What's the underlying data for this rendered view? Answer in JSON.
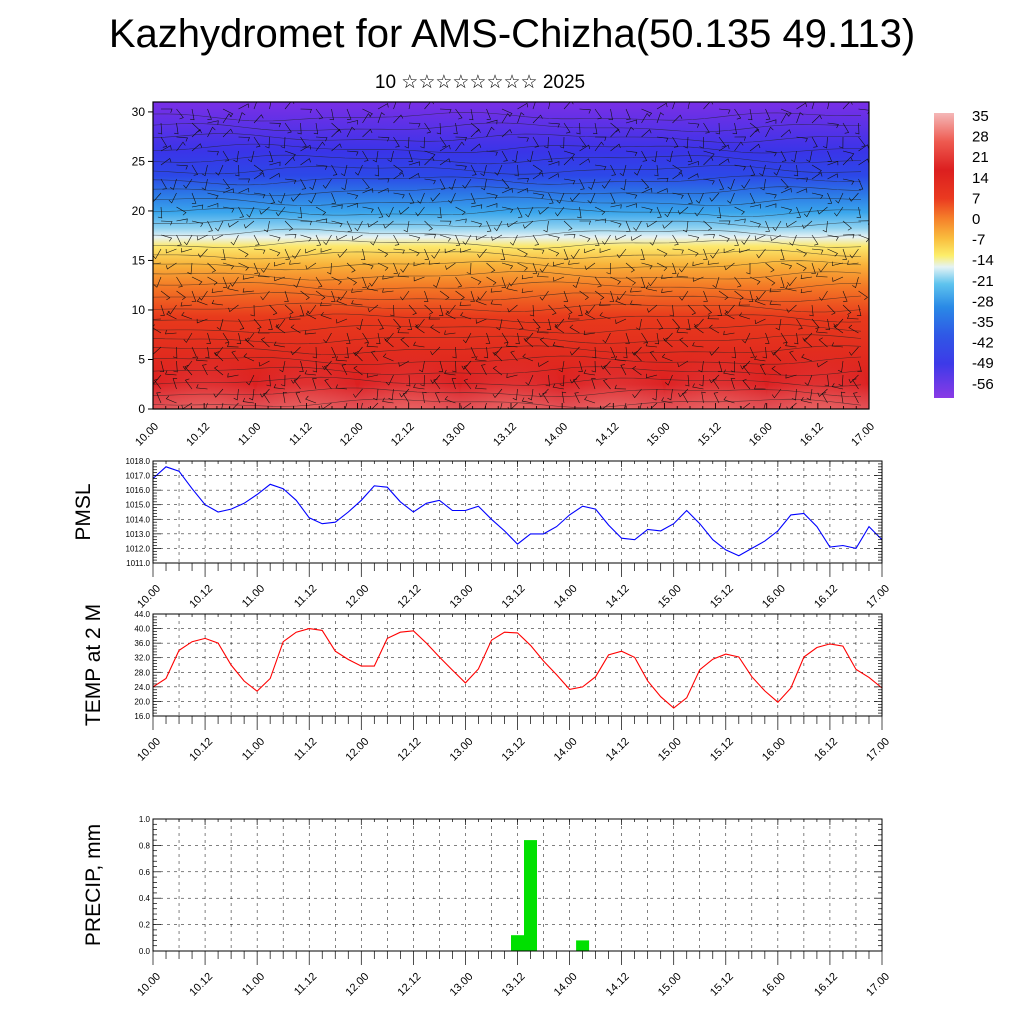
{
  "title": "Kazhydromet for AMS-Chizha(50.135 49.113)",
  "subtitle": "10 ☆☆☆☆☆☆☆☆ 2025",
  "time_ticks": [
    "10.00",
    "10.12",
    "11.00",
    "11.12",
    "12.00",
    "12.12",
    "13.00",
    "13.12",
    "14.00",
    "14.12",
    "15.00",
    "15.12",
    "16.00",
    "16.12",
    "17.00"
  ],
  "colorbar": {
    "labels": [
      "35",
      "28",
      "21",
      "14",
      "7",
      "0",
      "-7",
      "-14",
      "-21",
      "-28",
      "-35",
      "-42",
      "-49",
      "-56"
    ],
    "colors": [
      "#f4b6b6",
      "#ee5a50",
      "#dc1f1f",
      "#ea3a20",
      "#f5802a",
      "#f9bd3e",
      "#fcee6a",
      "#d8eef2",
      "#5ec3ee",
      "#2a8ae6",
      "#2f58e6",
      "#3d3ae8",
      "#6a2ce6",
      "#8a3ae6"
    ]
  },
  "chart_data": [
    {
      "type": "heatmap",
      "title": "",
      "ylabel": "",
      "ylim": [
        0,
        31
      ],
      "yticks": [
        "0",
        "5",
        "10",
        "15",
        "20",
        "25",
        "30"
      ],
      "x": [
        "10.00",
        "10.12",
        "11.00",
        "11.12",
        "12.00",
        "12.12",
        "13.00",
        "13.12",
        "14.00",
        "14.12",
        "15.00",
        "15.12",
        "16.00",
        "16.12",
        "17.00"
      ],
      "levels": [
        35,
        28,
        21,
        14,
        7,
        0,
        -7,
        -14,
        -21,
        -28,
        -35,
        -42,
        -49,
        -56
      ],
      "overlay": "wind barbs"
    },
    {
      "type": "line",
      "ylabel": "PMSL",
      "ylim": [
        1011.0,
        1018.0
      ],
      "yticks": [
        "1011.0",
        "1012.0",
        "1013.0",
        "1014.0",
        "1015.0",
        "1016.0",
        "1017.0",
        "1018.0"
      ],
      "color": "#0000ff",
      "x": [
        "10.00",
        "10.03",
        "10.06",
        "10.09",
        "10.12",
        "10.15",
        "10.18",
        "10.21",
        "11.00",
        "11.03",
        "11.06",
        "11.09",
        "11.12",
        "11.15",
        "11.18",
        "11.21",
        "12.00",
        "12.03",
        "12.06",
        "12.09",
        "12.12",
        "12.15",
        "12.18",
        "12.21",
        "13.00",
        "13.03",
        "13.06",
        "13.09",
        "13.12",
        "13.15",
        "13.18",
        "13.21",
        "14.00",
        "14.03",
        "14.06",
        "14.09",
        "14.12",
        "14.15",
        "14.18",
        "14.21",
        "15.00",
        "15.03",
        "15.06",
        "15.09",
        "15.12",
        "15.15",
        "15.18",
        "15.21",
        "16.00",
        "16.03",
        "16.06",
        "16.09",
        "16.12",
        "16.15",
        "16.18",
        "16.21",
        "17.00"
      ],
      "values": [
        1016.8,
        1017.6,
        1017.3,
        1016.1,
        1015.0,
        1014.5,
        1014.7,
        1015.1,
        1015.7,
        1016.4,
        1016.1,
        1015.3,
        1014.1,
        1013.7,
        1013.8,
        1014.5,
        1015.3,
        1016.3,
        1016.2,
        1015.2,
        1014.5,
        1015.1,
        1015.3,
        1014.6,
        1014.6,
        1014.9,
        1014.0,
        1013.2,
        1012.3,
        1013.0,
        1013.0,
        1013.5,
        1014.3,
        1014.9,
        1014.7,
        1013.6,
        1012.7,
        1012.6,
        1013.3,
        1013.2,
        1013.7,
        1014.6,
        1013.7,
        1012.6,
        1011.9,
        1011.5,
        1012.0,
        1012.5,
        1013.2,
        1014.3,
        1014.4,
        1013.5,
        1012.1,
        1012.2,
        1012.0,
        1013.5,
        1012.6
      ]
    },
    {
      "type": "line",
      "ylabel": "TEMP at 2 M",
      "ylim": [
        16.0,
        44.0
      ],
      "yticks": [
        "16.0",
        "20.0",
        "24.0",
        "28.0",
        "32.0",
        "36.0",
        "40.0",
        "44.0"
      ],
      "color": "#ff0000",
      "x": [
        "10.00",
        "10.03",
        "10.06",
        "10.09",
        "10.12",
        "10.15",
        "10.18",
        "10.21",
        "11.00",
        "11.03",
        "11.06",
        "11.09",
        "11.12",
        "11.15",
        "11.18",
        "11.21",
        "12.00",
        "12.03",
        "12.06",
        "12.09",
        "12.12",
        "12.15",
        "12.18",
        "12.21",
        "13.00",
        "13.03",
        "13.06",
        "13.09",
        "13.12",
        "13.15",
        "13.18",
        "13.21",
        "14.00",
        "14.03",
        "14.06",
        "14.09",
        "14.12",
        "14.15",
        "14.18",
        "14.21",
        "15.00",
        "15.03",
        "15.06",
        "15.09",
        "15.12",
        "15.15",
        "15.18",
        "15.21",
        "16.00",
        "16.03",
        "16.06",
        "16.09",
        "16.12",
        "16.15",
        "16.18",
        "16.21",
        "17.00"
      ],
      "values": [
        24.0,
        26.3,
        34.0,
        36.4,
        37.3,
        36.0,
        30.0,
        25.6,
        22.8,
        26.3,
        36.4,
        39.0,
        40.0,
        39.5,
        33.8,
        31.5,
        29.7,
        29.7,
        37.3,
        39.0,
        39.4,
        36.0,
        32.2,
        28.6,
        25.1,
        28.9,
        36.8,
        39.0,
        38.8,
        35.4,
        31.1,
        27.3,
        23.3,
        24.0,
        26.8,
        32.8,
        33.8,
        32.1,
        25.6,
        21.3,
        18.2,
        21.0,
        28.7,
        31.6,
        33.0,
        32.2,
        26.8,
        22.9,
        19.8,
        23.7,
        32.2,
        34.8,
        35.8,
        35.2,
        28.8,
        26.6,
        23.7
      ]
    },
    {
      "type": "bar",
      "ylabel": "PRECIP, mm",
      "ylim": [
        0.0,
        1.0
      ],
      "yticks": [
        "0.0",
        "0.2",
        "0.4",
        "0.6",
        "0.8",
        "1.0"
      ],
      "color": "#00e000",
      "x": [
        "13.12",
        "13.15",
        "14.03"
      ],
      "values": [
        0.12,
        0.84,
        0.08
      ]
    }
  ]
}
